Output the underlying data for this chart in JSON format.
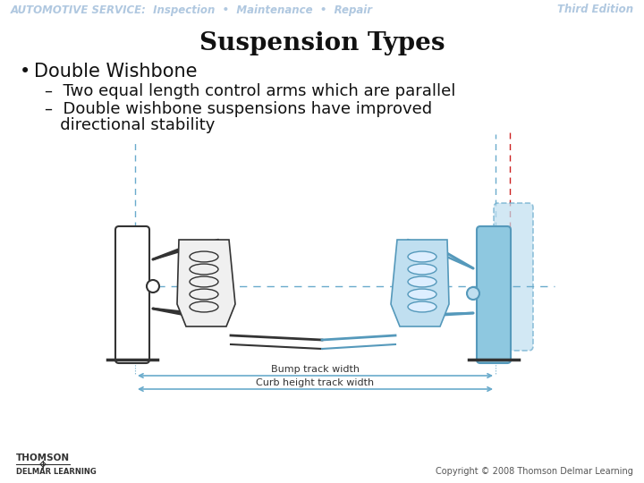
{
  "title": "Suspension Types",
  "bg_color": "#ffffff",
  "header_text": "AUTOMOTIVE SERVICE:  Inspection  •  Maintenance  •  Repair",
  "header_color": "#b0c8e0",
  "header_right": "Third Edition",
  "bullet_main": "Double Wishbone",
  "bullet_sub1": "–  Two equal length control arms which are parallel",
  "bullet_sub2a": "–  Double wishbone suspensions have improved",
  "bullet_sub2b": "   directional stability",
  "title_fontsize": 20,
  "header_fontsize": 8.5,
  "bullet_main_fontsize": 15,
  "bullet_sub_fontsize": 13,
  "footer_copyright": "Copyright © 2008 Thomson Delmar Learning",
  "footer_color": "#555555",
  "label_bump": "Bump track width",
  "label_curb": "Curb height track width",
  "blue_dash": "#6aabcc",
  "red_dash": "#cc2222",
  "draw_color": "#333333",
  "blue_fill": "#8ec8e0",
  "blue_fill_light": "#c0dff0"
}
